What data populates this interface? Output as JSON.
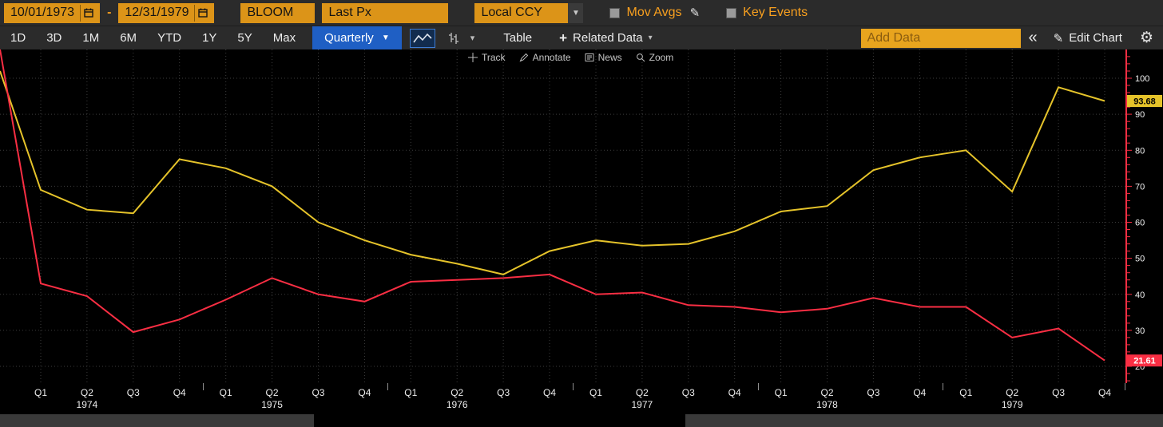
{
  "colors": {
    "amber_text": "#f79f1f",
    "amber_field": "#dc9418",
    "blue": "#1f5fc4",
    "yellow_line": "#e5c32a",
    "red_line": "#f92e43",
    "axis_red": "#f92e43",
    "grid": "#3c3c3c"
  },
  "top_bar": {
    "date_from": "10/01/1973",
    "separator": "-",
    "date_to": "12/31/1979",
    "security": "BLOOM",
    "last_px": "Last Px",
    "currency": "Local CCY",
    "mov_avgs_label": "Mov Avgs",
    "key_events_label": "Key Events"
  },
  "toolbar": {
    "ranges": [
      "1D",
      "3D",
      "1M",
      "6M",
      "YTD",
      "1Y",
      "5Y",
      "Max"
    ],
    "period": "Quarterly",
    "period_caret": "▼",
    "table_label": "Table",
    "related_plus": "+",
    "related_label": "Related Data",
    "related_caret": "▾",
    "chart_type_caret": "▾",
    "add_data_placeholder": "Add Data",
    "collapse_label": "«",
    "edit_pencil": "✎",
    "edit_chart_label": "Edit Chart",
    "gear": "⚙"
  },
  "chart_tools": {
    "track": "Track",
    "annotate": "Annotate",
    "news": "News",
    "zoom": "Zoom"
  },
  "badges": {
    "yellow": "93.68",
    "red": "21.61"
  },
  "chart_data": {
    "type": "line",
    "title": "",
    "y_ticks": [
      100,
      90,
      80,
      70,
      60,
      50,
      40,
      30,
      20
    ],
    "ylim": [
      15,
      108
    ],
    "grid": "dotted",
    "x_labels": [
      "Q1",
      "Q2",
      "Q3",
      "Q4",
      "Q1",
      "Q2",
      "Q3",
      "Q4",
      "Q1",
      "Q2",
      "Q3",
      "Q4",
      "Q1",
      "Q2",
      "Q3",
      "Q4",
      "Q1",
      "Q2",
      "Q3",
      "Q4",
      "Q1",
      "Q2",
      "Q3",
      "Q4"
    ],
    "years": [
      "1974",
      "1975",
      "1976",
      "1977",
      "1978",
      "1979"
    ],
    "series": [
      {
        "name": "series-yellow",
        "color": "#e5c32a",
        "last_label": "93.68",
        "values": [
          102,
          69,
          63.5,
          62.5,
          77.5,
          75,
          70,
          60,
          55,
          51,
          48.5,
          45.5,
          52,
          55,
          53.5,
          54,
          57.5,
          63,
          64.5,
          74.5,
          78,
          80,
          68.5,
          97.5,
          93.68
        ]
      },
      {
        "name": "series-red",
        "color": "#f92e43",
        "last_label": "21.61",
        "values": [
          108,
          43,
          39.5,
          29.5,
          33,
          38.5,
          44.5,
          40,
          38,
          43.5,
          44,
          44.5,
          45.5,
          40,
          40.5,
          37,
          36.5,
          35,
          36,
          39,
          36.5,
          36.5,
          28,
          30.5,
          21.61
        ]
      }
    ]
  }
}
